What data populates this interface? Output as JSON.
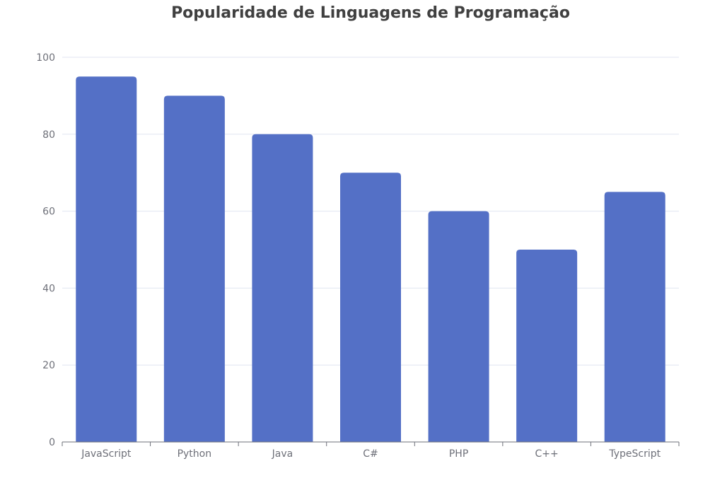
{
  "chart_data": {
    "type": "bar",
    "title": "Popularidade de Linguagens de Programação",
    "xlabel": "",
    "ylabel": "",
    "categories": [
      "JavaScript",
      "Python",
      "Java",
      "C#",
      "PHP",
      "C++",
      "TypeScript"
    ],
    "values": [
      95,
      90,
      80,
      70,
      60,
      50,
      65
    ],
    "ylim": [
      0,
      100
    ],
    "yticks": [
      "0",
      "20",
      "40",
      "60",
      "80",
      "100"
    ],
    "grid": true,
    "legend": "none",
    "colors": {
      "bar": "#5470c6",
      "grid": "#e0e6f1",
      "axis": "#6e7079",
      "tick_label": "#6e7079",
      "title": "#404040"
    }
  }
}
